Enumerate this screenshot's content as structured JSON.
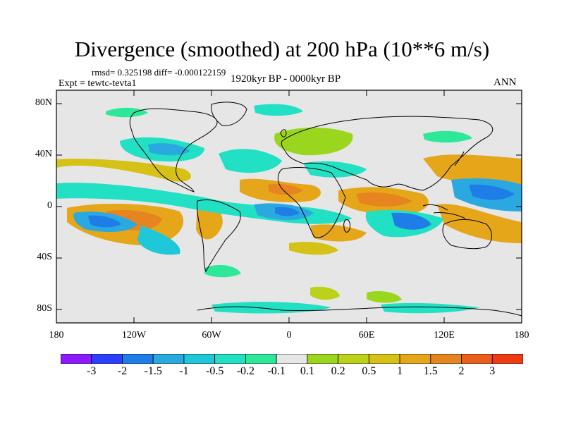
{
  "title": "Divergence (smoothed) at 200 hPa (10**6 m/s)",
  "stats": "rmsd= 0.325198 diff= -0.000122159",
  "experiment": "Expt = tewtc-tevta1",
  "period": "1920kyr BP - 0000kyr BP",
  "season": "ANN",
  "map": {
    "background_color": "#e6e6e6",
    "lat_labels": [
      "80N",
      "40N",
      "0",
      "40S",
      "80S"
    ],
    "lon_labels": [
      "180",
      "120W",
      "60W",
      "0",
      "60E",
      "120E",
      "180"
    ]
  },
  "colorbar": {
    "colors": [
      "#8c1aff",
      "#2a3fff",
      "#1e7de6",
      "#2aa9e0",
      "#1fc8d8",
      "#22e0c4",
      "#2ee89a",
      "#e6e6e6",
      "#9ad61e",
      "#bcd21a",
      "#d6c216",
      "#e6a619",
      "#e6841f",
      "#ea5e1c",
      "#f03a14"
    ],
    "labels": [
      "-3",
      "-2",
      "-1.5",
      "-1",
      "-0.5",
      "-0.2",
      "-0.1",
      "0.1",
      "0.2",
      "0.5",
      "1",
      "1.5",
      "2",
      "3"
    ]
  }
}
